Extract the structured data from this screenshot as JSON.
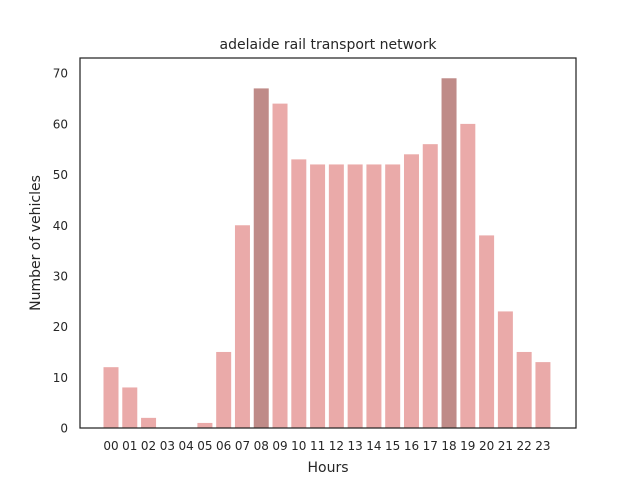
{
  "chart_data": {
    "type": "bar",
    "title": "adelaide rail transport network",
    "xlabel": "Hours",
    "ylabel": "Number of vehicles",
    "categories": [
      "00",
      "01",
      "02",
      "03",
      "04",
      "05",
      "06",
      "07",
      "08",
      "09",
      "10",
      "11",
      "12",
      "13",
      "14",
      "15",
      "16",
      "17",
      "18",
      "19",
      "20",
      "21",
      "22",
      "23"
    ],
    "values": [
      12,
      8,
      2,
      0,
      0,
      1,
      15,
      40,
      67,
      64,
      53,
      52,
      52,
      52,
      52,
      52,
      54,
      56,
      69,
      60,
      38,
      23,
      15,
      13
    ],
    "highlighted_categories": [
      "08",
      "18"
    ],
    "ylim": [
      0,
      73
    ],
    "yticks": [
      0,
      10,
      20,
      30,
      40,
      50,
      60,
      70
    ],
    "grid": false,
    "legend": "none",
    "colors": {
      "bar": "#eaaaa9",
      "bar_highlight": "#bf8b88",
      "axis": "#262626"
    }
  }
}
